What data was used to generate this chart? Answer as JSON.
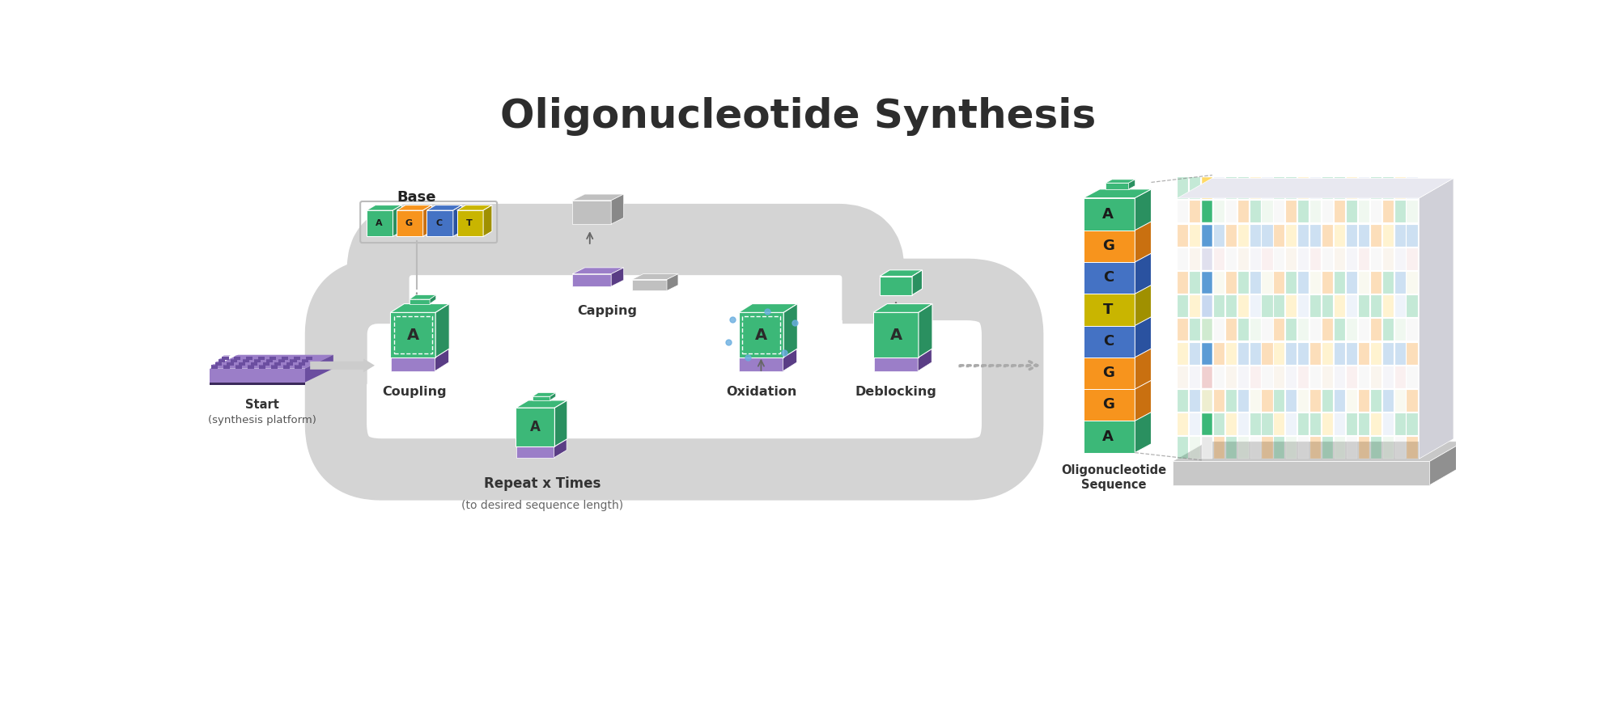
{
  "title": "Oligonucleotide Synthesis",
  "title_fontsize": 36,
  "title_fontweight": "bold",
  "title_color": "#2d2d2d",
  "bg_color": "#ffffff",
  "step_labels": [
    "Start",
    "(synthesis platform)",
    "Coupling",
    "Capping",
    "Oxidation",
    "Deblocking",
    "Oligonucleotide\nSequence"
  ],
  "base_label": "Base",
  "repeat_label": "Repeat x Times",
  "repeat_sublabel": "(to desired sequence length)",
  "green_color": "#3cb878",
  "green_dark": "#2a9060",
  "orange_color": "#f7941d",
  "orange_dark": "#c97010",
  "blue_color": "#4472c4",
  "blue_dark": "#2a52a0",
  "blue_light": "#5b9bd5",
  "yellow_color": "#c9b500",
  "yellow_dark": "#a09000",
  "yellow2_color": "#ffd966",
  "purple_color": "#7b5ea7",
  "purple_dark": "#5a3d85",
  "purple_light": "#9b7ec8",
  "purple_lighter": "#c5aee0",
  "gray_flow": "#d4d4d4",
  "gray_cube": "#aaaaaa",
  "gray_cube_dark": "#888888",
  "gray_cube_light": "#c8c8c8",
  "base_cubes": [
    {
      "letter": "A",
      "color": "#3cb878",
      "dark": "#2a9060"
    },
    {
      "letter": "G",
      "color": "#f7941d",
      "dark": "#c97010"
    },
    {
      "letter": "C",
      "color": "#4472c4",
      "dark": "#2a52a0"
    },
    {
      "letter": "T",
      "color": "#c9b500",
      "dark": "#a09000"
    }
  ],
  "sequence_blocks": [
    {
      "letter": "A",
      "color": "#3cb878",
      "dark": "#2a9060"
    },
    {
      "letter": "G",
      "color": "#f7941d",
      "dark": "#c97010"
    },
    {
      "letter": "C",
      "color": "#4472c4",
      "dark": "#2a52a0"
    },
    {
      "letter": "T",
      "color": "#c9b500",
      "dark": "#a09000"
    },
    {
      "letter": "C",
      "color": "#4472c4",
      "dark": "#2a52a0"
    },
    {
      "letter": "G",
      "color": "#f7941d",
      "dark": "#c97010"
    },
    {
      "letter": "G",
      "color": "#f7941d",
      "dark": "#c97010"
    },
    {
      "letter": "A",
      "color": "#3cb878",
      "dark": "#2a9060"
    }
  ]
}
